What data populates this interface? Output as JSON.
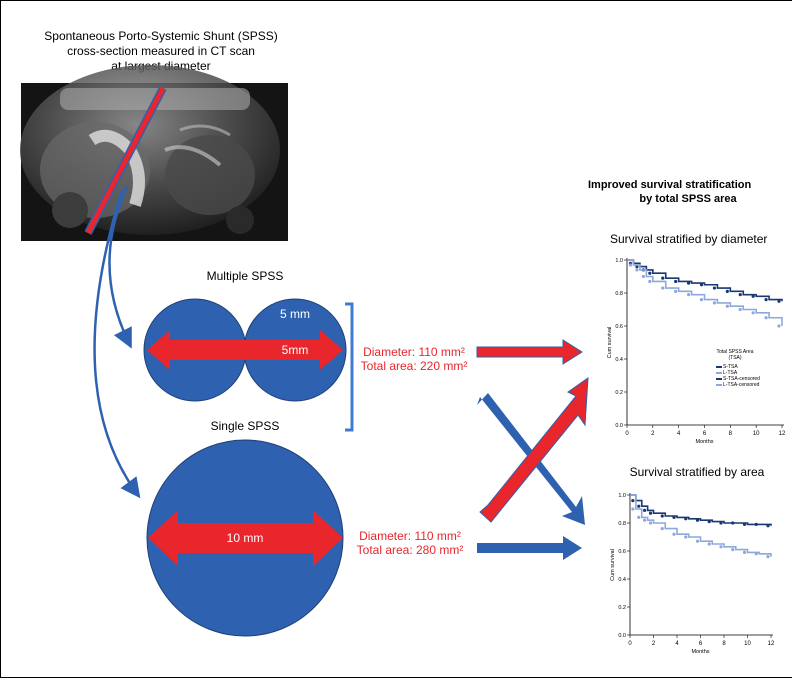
{
  "ct": {
    "caption_line1": "Spontaneous Porto-Systemic Shunt (SPSS)",
    "caption_line2": "cross-section measured in CT scan",
    "caption_line3": "at largest diameter"
  },
  "multiple": {
    "title": "Multiple SPSS",
    "top_label": "5 mm",
    "mid_label": "5mm",
    "diameter_text": "Diameter: 110 mm²",
    "area_text": "Total area: 220 mm²"
  },
  "single": {
    "title": "Single SPSS",
    "label": "10 mm",
    "diameter_text": "Diameter: 110 mm²",
    "area_text": "Total area: 280 mm²"
  },
  "right": {
    "headline_line1": "Improved survival  stratification",
    "headline_line2": "by  total SPSS   area"
  },
  "colors": {
    "blue": "#2e62b0",
    "red": "#e8262b",
    "dark_series": "#1a3870",
    "light_series": "#8ea8dc"
  },
  "chart_data": [
    {
      "type": "line",
      "title": "Survival stratified by diameter",
      "xlabel": "Months",
      "ylabel": "Cum survival",
      "xlim": [
        0,
        12
      ],
      "ylim": [
        0,
        1.0
      ],
      "xticks": [
        0,
        2,
        4,
        6,
        8,
        10,
        12
      ],
      "yticks": [
        0.0,
        0.2,
        0.4,
        0.6,
        0.8,
        1.0
      ],
      "xtick_labels": [
        "0",
        "2",
        "4",
        "6",
        "8",
        "10",
        "12"
      ],
      "ytick_labels": [
        "0.0",
        "0.2",
        "0.4",
        "0.6",
        "0.8",
        "1.0"
      ],
      "legend_title": "Total SPSS Area (TSA)",
      "legend_entries": [
        "S-TSA",
        "L-TSA",
        "S-TSA-censored",
        "L-TSA-censored"
      ],
      "legend_position": "right",
      "series": [
        {
          "name": "S-TSA",
          "x": [
            0,
            0.5,
            1,
            1.5,
            2,
            3,
            4,
            5,
            6,
            7,
            8,
            9,
            10,
            11,
            12
          ],
          "values": [
            1.0,
            0.98,
            0.96,
            0.94,
            0.92,
            0.89,
            0.87,
            0.86,
            0.85,
            0.83,
            0.81,
            0.79,
            0.78,
            0.76,
            0.75
          ]
        },
        {
          "name": "L-TSA",
          "x": [
            0,
            0.5,
            1,
            1.5,
            2,
            3,
            4,
            5,
            6,
            7,
            8,
            9,
            10,
            11,
            12
          ],
          "values": [
            1.0,
            0.97,
            0.94,
            0.9,
            0.87,
            0.83,
            0.81,
            0.79,
            0.76,
            0.74,
            0.72,
            0.7,
            0.68,
            0.65,
            0.6
          ]
        }
      ]
    },
    {
      "type": "line",
      "title": "Survival stratified by area",
      "xlabel": "Months",
      "ylabel": "Cum survival",
      "xlim": [
        0,
        12
      ],
      "ylim": [
        0,
        1.0
      ],
      "xticks": [
        0,
        2,
        4,
        6,
        8,
        10,
        12
      ],
      "yticks": [
        0.0,
        0.2,
        0.4,
        0.6,
        0.8,
        1.0
      ],
      "xtick_labels": [
        "0",
        "2",
        "4",
        "6",
        "8",
        "10",
        "12"
      ],
      "ytick_labels": [
        "0.0",
        "0.2",
        "0.4",
        "0.6",
        "0.8",
        "1.0"
      ],
      "series": [
        {
          "name": "S-TSA",
          "x": [
            0,
            0.5,
            1,
            1.5,
            2,
            3,
            4,
            5,
            6,
            7,
            8,
            9,
            10,
            11,
            12
          ],
          "values": [
            1.0,
            0.96,
            0.92,
            0.89,
            0.87,
            0.85,
            0.84,
            0.83,
            0.82,
            0.81,
            0.8,
            0.8,
            0.79,
            0.79,
            0.78
          ]
        },
        {
          "name": "L-TSA",
          "x": [
            0,
            0.5,
            1,
            1.5,
            2,
            3,
            4,
            5,
            6,
            7,
            8,
            9,
            10,
            11,
            12
          ],
          "values": [
            1.0,
            0.9,
            0.84,
            0.82,
            0.8,
            0.76,
            0.72,
            0.7,
            0.67,
            0.65,
            0.63,
            0.61,
            0.59,
            0.58,
            0.56
          ]
        }
      ]
    }
  ]
}
